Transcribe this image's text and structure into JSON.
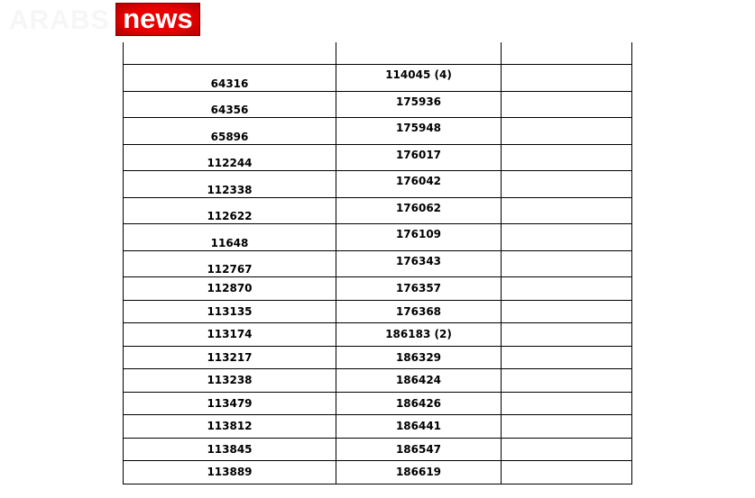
{
  "logo": {
    "text_gray": "ARABS",
    "text_box": "news",
    "brand_color": "#e00000"
  },
  "table": {
    "header": [
      "",
      "",
      ""
    ],
    "rows": [
      [
        "64316",
        "114045 (4)",
        ""
      ],
      [
        "64356",
        "175936",
        ""
      ],
      [
        "65896",
        "175948",
        ""
      ],
      [
        "112244",
        "176017",
        ""
      ],
      [
        "112338",
        "176042",
        ""
      ],
      [
        "112622",
        "176062",
        ""
      ],
      [
        "11648",
        "176109",
        ""
      ],
      [
        "112767",
        "176343",
        ""
      ],
      [
        "112870",
        "176357",
        ""
      ],
      [
        "113135",
        "176368",
        ""
      ],
      [
        "113174",
        "186183 (2)",
        ""
      ],
      [
        "113217",
        "186329",
        ""
      ],
      [
        "113238",
        "186424",
        ""
      ],
      [
        "113479",
        "186426",
        ""
      ],
      [
        "113812",
        "186441",
        ""
      ],
      [
        "113845",
        "186547",
        ""
      ],
      [
        "113889",
        "186619",
        ""
      ]
    ]
  }
}
